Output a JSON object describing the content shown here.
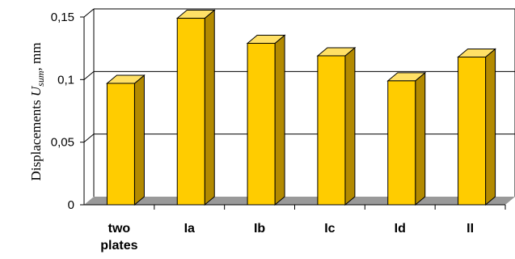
{
  "chart_data": {
    "type": "bar",
    "categories": [
      [
        "two",
        "plates"
      ],
      [
        "Ia"
      ],
      [
        "Ib"
      ],
      [
        "Ic"
      ],
      [
        "Id"
      ],
      [
        "II"
      ]
    ],
    "values": [
      0.097,
      0.149,
      0.129,
      0.119,
      0.099,
      0.118
    ],
    "ylabel": {
      "prefix": "Displacements ",
      "symbol": "U",
      "subscript": "sum",
      "suffix": ", mm"
    },
    "yticks": [
      "0",
      "0,05",
      "0,1",
      "0,15"
    ],
    "ytick_values": [
      0,
      0.05,
      0.1,
      0.15
    ],
    "ylim": [
      0,
      0.15
    ],
    "grid": true,
    "style": "3d",
    "colors": {
      "bar_front": "#FFCC00",
      "bar_side": "#B38A00",
      "bar_top": "#FFE066",
      "floor": "#999999",
      "grid": "#000000"
    }
  }
}
